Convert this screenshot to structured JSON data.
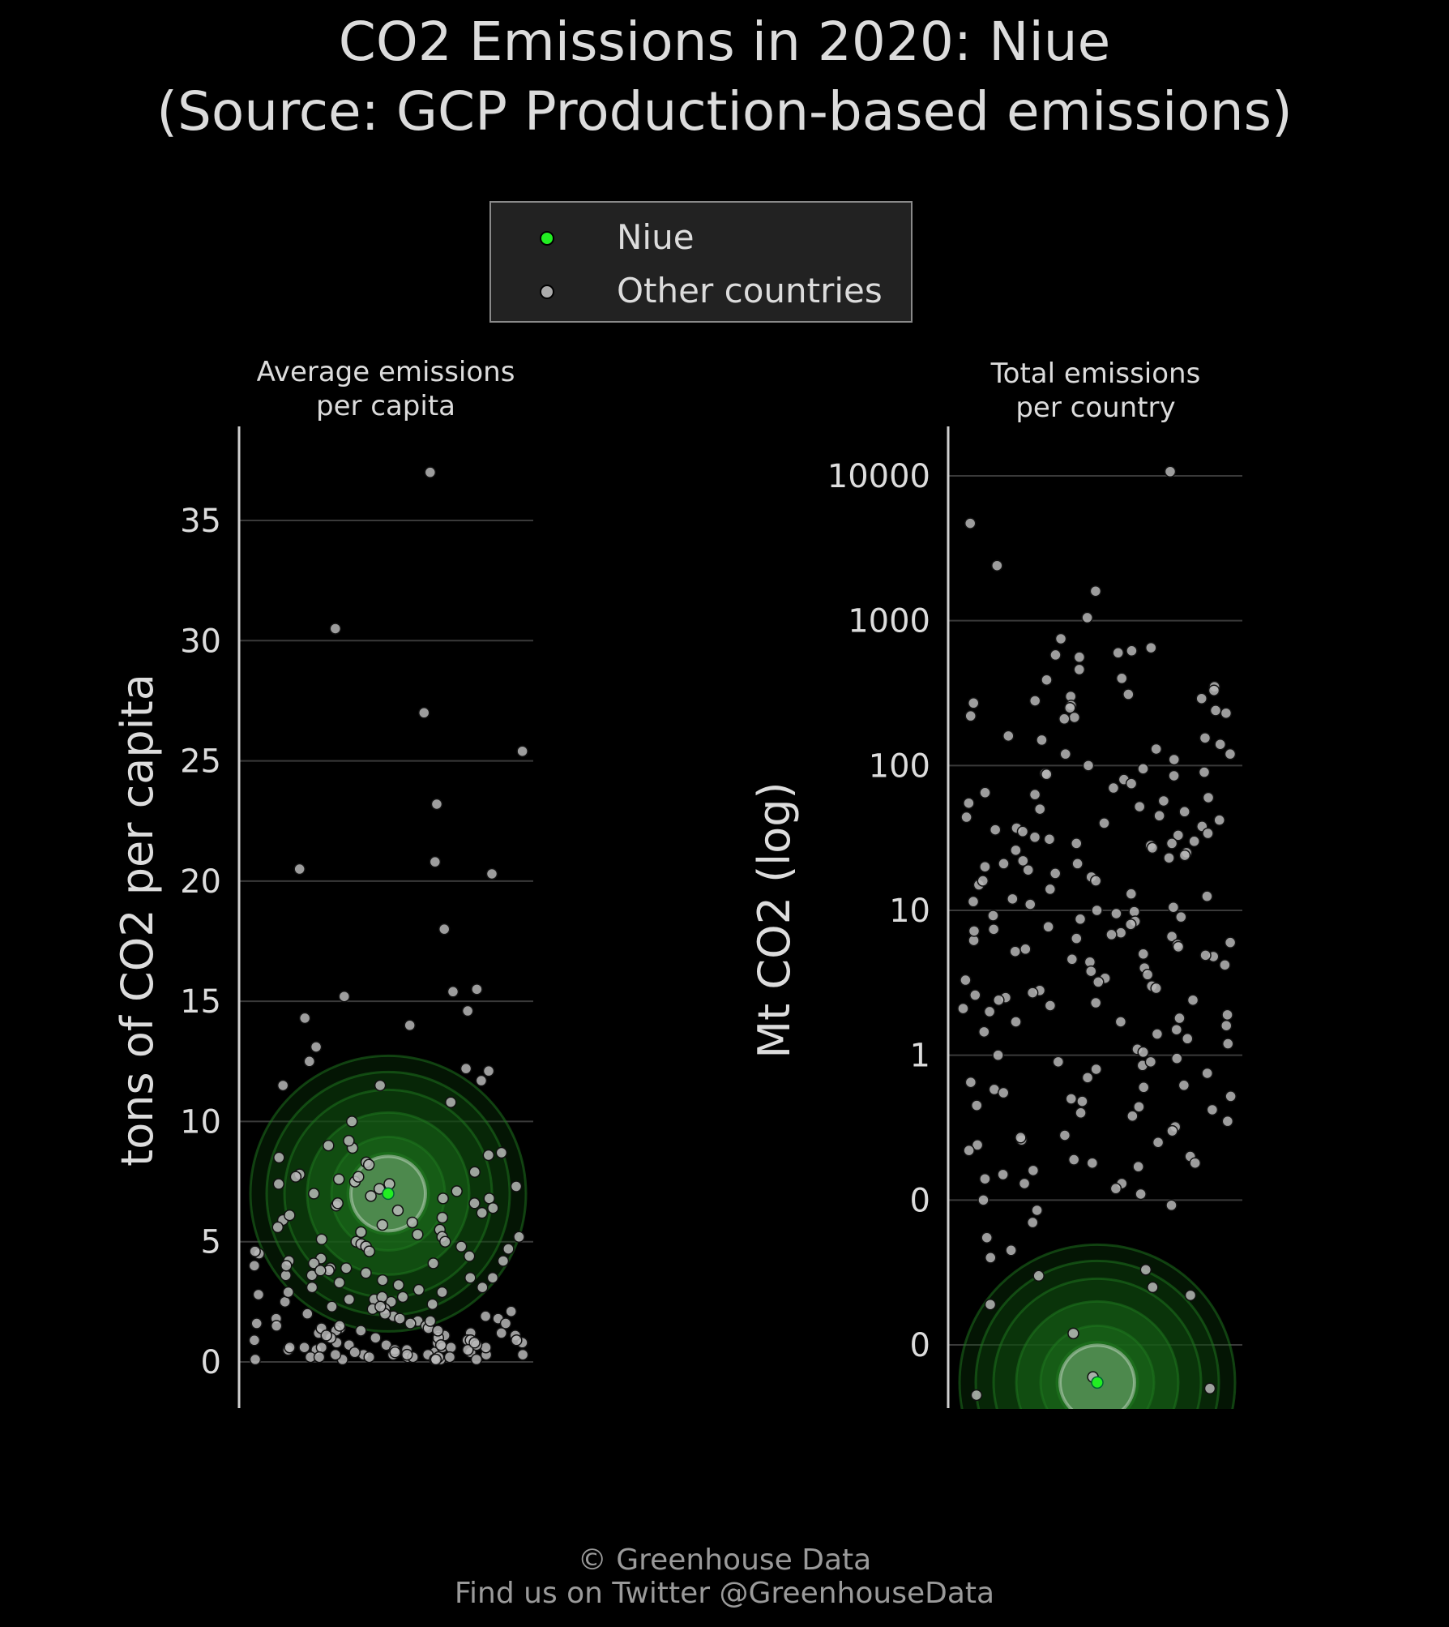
{
  "title_line1": "CO2 Emissions in 2020: Niue",
  "title_line2": "(Source: GCP Production-based emissions)",
  "legend": [
    {
      "label": "Niue",
      "color": "#22ee22"
    },
    {
      "label": "Other countries",
      "color": "#aaaaaa"
    }
  ],
  "footer_line1": "© Greenhouse Data",
  "footer_line2": "Find us on Twitter @GreenhouseData",
  "chart_data": [
    {
      "type": "scatter",
      "title": "Average emissions\nper capita",
      "title_line1": "Average emissions",
      "title_line2": "per capita",
      "ylabel": "tons of CO2 per capita",
      "ylim": [
        -1.8,
        38.8
      ],
      "yticks": [
        0,
        5,
        10,
        15,
        20,
        25,
        30,
        35
      ],
      "ytick_labels": [
        "0",
        "5",
        "10",
        "15",
        "20",
        "25",
        "30",
        "35"
      ],
      "grid": true,
      "highlight": {
        "name": "Niue",
        "value": 7.0
      },
      "values": [
        37.0,
        30.5,
        27.0,
        25.4,
        23.2,
        20.8,
        20.5,
        20.3,
        18.0,
        15.5,
        15.4,
        15.2,
        14.6,
        14.3,
        14.0,
        13.1,
        12.5,
        12.2,
        12.1,
        11.7,
        11.5,
        11.5,
        10.8,
        10.0,
        9.0,
        8.9,
        8.7,
        8.6,
        8.3,
        8.2,
        7.9,
        7.8,
        7.7,
        7.6,
        7.5,
        7.4,
        7.3,
        7.2,
        7.1,
        7.0,
        6.9,
        6.8,
        6.6,
        6.5,
        6.3,
        6.2,
        6.0,
        5.9,
        5.8,
        5.6,
        5.5,
        5.4,
        5.2,
        5.1,
        5.0,
        4.9,
        4.8,
        4.7,
        4.6,
        4.5,
        4.3,
        4.2,
        4.1,
        4.0,
        3.9,
        3.8,
        3.7,
        3.6,
        3.5,
        3.4,
        3.2,
        3.1,
        3.0,
        2.9,
        2.8,
        2.7,
        2.6,
        2.5,
        2.4,
        2.3,
        2.2,
        2.1,
        2.0,
        1.9,
        1.8,
        1.7,
        1.6,
        1.5,
        1.4,
        1.3,
        1.2,
        1.1,
        1.0,
        0.9,
        0.8,
        0.7,
        0.6,
        0.5,
        0.4,
        0.3,
        0.2,
        0.1,
        1.8,
        1.6,
        1.5,
        1.2,
        1.0,
        0.9,
        0.8,
        0.6,
        0.5,
        0.4,
        0.3,
        0.2,
        0.1,
        1.4,
        1.1,
        0.7,
        0.5,
        0.3,
        0.2,
        1.9,
        1.3,
        0.9,
        0.6,
        0.4,
        0.3,
        0.2,
        0.1,
        2.0,
        1.7,
        1.2,
        0.8,
        0.5,
        0.3,
        0.2,
        0.1,
        2.2,
        1.5,
        1.0,
        0.7,
        0.4,
        0.2,
        0.1,
        2.5,
        1.8,
        1.1,
        0.6,
        0.3,
        0.1,
        4.4,
        3.3,
        2.7,
        5.7,
        6.1,
        6.4,
        3.9,
        4.6,
        5.3,
        7.7,
        8.5,
        2.9,
        3.6,
        4.0,
        4.8,
        5.0,
        6.8,
        9.2,
        3.1,
        2.3,
        4.2,
        6.6,
        7.4,
        3.5,
        2.6,
        5.2,
        4.1,
        3.8,
        1.6,
        0.9,
        1.4,
        0.6,
        0.3,
        0.8,
        1.0,
        0.5,
        0.2,
        0.4,
        0.7,
        1.3,
        1.1,
        0.6
      ]
    },
    {
      "type": "scatter",
      "title": "Total emissions\nper country",
      "title_line1": "Total emissions",
      "title_line2": "per country",
      "ylabel": "Mt CO2 (log)",
      "yscale": "log",
      "ylim": [
        0.0004,
        20000
      ],
      "yticks": [
        0.001,
        0.01,
        0.1,
        1,
        10,
        100,
        1000,
        10000
      ],
      "ytick_labels": [
        "0",
        "0",
        "1",
        "10",
        "100",
        "1000",
        "10000"
      ],
      "ytick_values": [
        0.01,
        0.1,
        1,
        10,
        100,
        1000,
        10000
      ],
      "grid": true,
      "highlight": {
        "name": "Niue",
        "value": 0.0055
      },
      "values": [
        10700,
        4700,
        2400,
        1600,
        1050,
        750,
        650,
        620,
        600,
        580,
        560,
        460,
        400,
        390,
        350,
        330,
        310,
        300,
        290,
        280,
        270,
        260,
        250,
        240,
        230,
        220,
        215,
        210,
        160,
        155,
        150,
        140,
        130,
        120,
        110,
        100,
        95,
        90,
        88,
        85,
        80,
        75,
        70,
        65,
        60,
        57,
        55,
        52,
        50,
        48,
        45,
        42,
        40,
        38,
        37,
        36,
        35,
        34,
        33,
        32,
        31,
        30,
        29,
        28,
        27,
        26,
        25,
        24,
        23,
        22,
        21,
        20,
        19,
        18,
        17,
        16,
        15,
        14,
        13,
        12.5,
        12,
        11.5,
        11,
        10.5,
        10,
        9.8,
        9.5,
        9.2,
        9,
        8.7,
        8.4,
        8,
        7.7,
        7.4,
        7,
        6.8,
        6.6,
        6.4,
        6.2,
        6,
        5.8,
        5.6,
        5.4,
        5.2,
        5,
        4.8,
        4.6,
        4.4,
        4.2,
        4,
        3.8,
        3.6,
        3.4,
        3.2,
        3,
        2.9,
        2.8,
        2.7,
        2.6,
        2.5,
        2.4,
        2.3,
        2.2,
        2.1,
        2,
        1.9,
        1.8,
        1.7,
        1.6,
        1.5,
        1.4,
        1.3,
        1.2,
        1.1,
        1.05,
        1.0,
        0.95,
        0.9,
        0.85,
        0.8,
        0.75,
        0.7,
        0.65,
        0.6,
        0.58,
        0.55,
        0.52,
        0.5,
        0.48,
        0.45,
        0.42,
        0.4,
        0.38,
        0.35,
        0.32,
        0.3,
        0.28,
        0.26,
        0.25,
        0.24,
        0.22,
        0.2,
        0.19,
        0.18,
        0.17,
        0.16,
        0.15,
        0.14,
        0.13,
        0.12,
        0.11,
        0.1,
        0.085,
        0.07,
        0.055,
        0.045,
        0.04,
        0.03,
        0.022,
        0.019,
        0.006,
        0.005,
        0.0045,
        0.025,
        0.033,
        0.012,
        3.3,
        2.4,
        1.7,
        0.9,
        0.62,
        0.44,
        0.27,
        0.18,
        0.13,
        0.092,
        44,
        63,
        87,
        120,
        29,
        21,
        16,
        7.2,
        4.9,
        1.45
      ]
    }
  ]
}
